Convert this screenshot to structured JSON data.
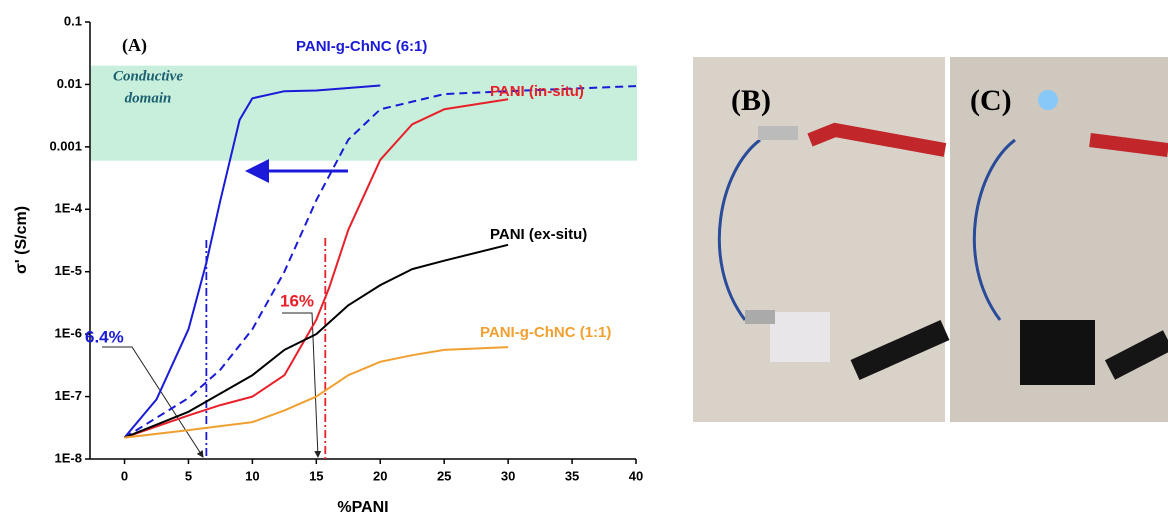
{
  "chart_data": {
    "type": "line",
    "panel_label": "(A)",
    "x_label": "%PANI",
    "y_label": "σ' (S/cm)",
    "xlim": [
      -2.7,
      40
    ],
    "xticks": [
      0,
      5,
      10,
      15,
      20,
      25,
      30,
      35,
      40
    ],
    "ylim": [
      1e-08,
      0.1
    ],
    "log_y": true,
    "yticks": [
      {
        "value": 1e-08,
        "label": "1E-8"
      },
      {
        "value": 1e-07,
        "label": "1E-7"
      },
      {
        "value": 1e-06,
        "label": "1E-6"
      },
      {
        "value": 1e-05,
        "label": "1E-5"
      },
      {
        "value": 0.0001,
        "label": "1E-4"
      },
      0.001,
      0.01,
      0.1
    ],
    "region": {
      "lines": [
        "Conductive",
        "domain"
      ],
      "range": [
        0.0006,
        0.02
      ],
      "color": "#c8efdc"
    },
    "series": [
      {
        "name": "PANI-g-ChNC (6:1)",
        "color": "#1a1ad8",
        "dash": false,
        "x": [
          0,
          2.5,
          5,
          6.4,
          7.5,
          9,
          10,
          12.5,
          15,
          20
        ],
        "values": [
          2.2e-08,
          9e-08,
          1.2e-06,
          1.4e-05,
          0.00014,
          0.0027,
          0.006,
          0.0078,
          0.008,
          0.0096
        ]
      },
      {
        "name": null,
        "color": "#1a1ad8",
        "dash": true,
        "x": [
          0,
          5,
          7.5,
          10,
          12.5,
          15,
          17.5,
          20,
          25,
          30,
          40
        ],
        "values": [
          2.2e-08,
          9.5e-08,
          2.7e-07,
          1.2e-06,
          1e-05,
          0.00014,
          0.0013,
          0.004,
          0.007,
          0.0078,
          0.0094
        ]
      },
      {
        "name": "PANI (in-situ)",
        "color": "#e8202a",
        "dash": false,
        "x": [
          0,
          5,
          7.5,
          10,
          12.5,
          15,
          16,
          17.5,
          20,
          22.5,
          25,
          30
        ],
        "values": [
          2.2e-08,
          5e-08,
          7.3e-08,
          1e-07,
          2.2e-07,
          1.7e-06,
          5.5e-06,
          4.7e-05,
          0.00062,
          0.0023,
          0.004,
          0.0058
        ]
      },
      {
        "name": "PANI (ex-situ)",
        "color": "#000000",
        "dash": false,
        "x": [
          0,
          5,
          10,
          12.5,
          15,
          17.5,
          20,
          22.5,
          25,
          30
        ],
        "values": [
          2.2e-08,
          5.7e-08,
          2.2e-07,
          5.6e-07,
          1e-06,
          2.9e-06,
          6.1e-06,
          1.1e-05,
          1.5e-05,
          2.7e-05
        ]
      },
      {
        "name": "PANI-g-ChNC (1:1)",
        "color": "#f0a030",
        "dash": false,
        "x": [
          0,
          5,
          10,
          12.5,
          15,
          17.5,
          20,
          22.5,
          25,
          30
        ],
        "values": [
          2.2e-08,
          2.9e-08,
          3.9e-08,
          6e-08,
          1e-07,
          2.2e-07,
          3.6e-07,
          4.6e-07,
          5.6e-07,
          6.2e-07
        ]
      }
    ],
    "markers": [
      {
        "x": 6.4,
        "label": "6.4%",
        "color": "#1a1ad8"
      },
      {
        "x": 15.7,
        "label": "16%",
        "color": "#e8202a"
      }
    ],
    "photos": [
      "(B)",
      "(C)"
    ]
  }
}
